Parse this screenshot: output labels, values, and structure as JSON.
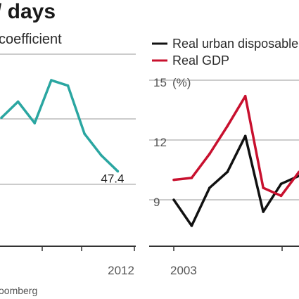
{
  "header": {
    "title": "/ days",
    "source": "oomberg"
  },
  "colors": {
    "teal": "#2aa6a1",
    "black": "#111111",
    "red": "#c8102e",
    "grid": "#9a9a9a",
    "axis": "#333333"
  },
  "chart_data": [
    {
      "type": "line",
      "title": "",
      "subtitle": "coefficient",
      "xlabel": "",
      "ylabel": "",
      "x_tick_labels": [
        "2012"
      ],
      "ylim": [
        46,
        49.6
      ],
      "grid": "horizontal",
      "series": [
        {
          "name": "",
          "color": "#2aa6a1",
          "x": [
            2004,
            2005,
            2006,
            2007,
            2008,
            2009,
            2010,
            2011,
            2012
          ],
          "y": [
            48.4,
            48.7,
            48.3,
            49.1,
            49.0,
            48.1,
            47.7,
            47.4,
            null
          ]
        }
      ],
      "annotations": [
        {
          "text": "47.4",
          "x": 2011,
          "y": 47.4
        }
      ]
    },
    {
      "type": "line",
      "title": "",
      "xlabel": "",
      "ylabel": "(%)",
      "x_tick_labels": [
        "2003"
      ],
      "y_tick_labels": [
        "9",
        "12",
        "15"
      ],
      "ylim": [
        7,
        16
      ],
      "grid": "horizontal",
      "legend": "top",
      "series": [
        {
          "name": "Real urban disposable",
          "color": "#111111",
          "x": [
            2003,
            2004,
            2005,
            2006,
            2007,
            2008,
            2009,
            2010
          ],
          "y": [
            9.0,
            7.7,
            9.6,
            10.4,
            12.2,
            8.4,
            9.8,
            10.2
          ]
        },
        {
          "name": "Real GDP",
          "color": "#c8102e",
          "x": [
            2003,
            2004,
            2005,
            2006,
            2007,
            2008,
            2009,
            2010
          ],
          "y": [
            10.0,
            10.1,
            11.3,
            12.7,
            14.2,
            9.6,
            9.2,
            10.4
          ]
        }
      ]
    }
  ]
}
